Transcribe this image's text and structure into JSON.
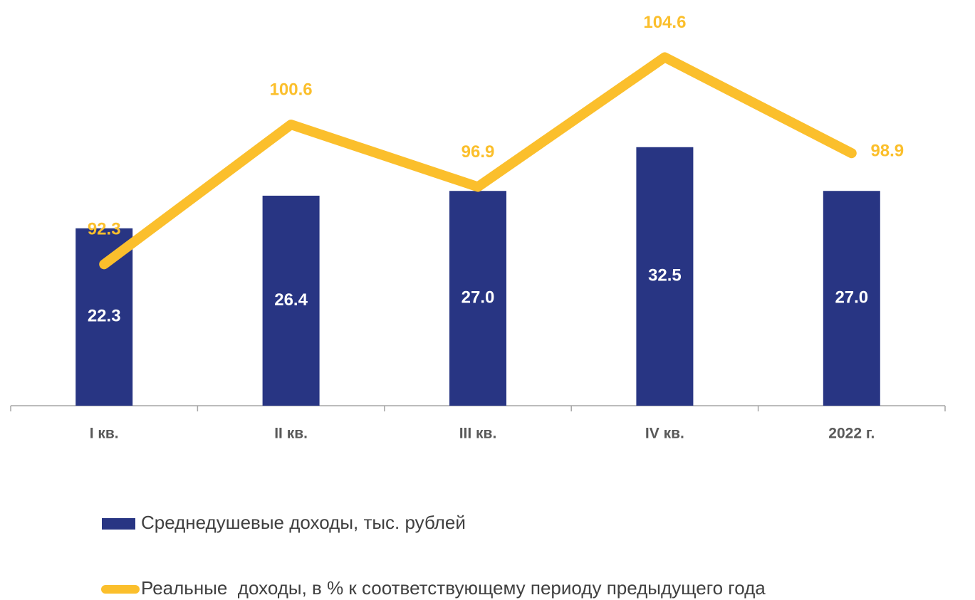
{
  "chart_data": {
    "type": "bar_line",
    "categories": [
      "I кв.",
      "II кв.",
      "III кв.",
      "IV кв.",
      "2022 г."
    ],
    "series": [
      {
        "name": "Среднедушевые доходы, тыс. рублей",
        "type": "bar",
        "color": "#283583",
        "values": [
          22.3,
          26.4,
          27.0,
          32.5,
          27.0
        ],
        "value_labels": [
          "22.3",
          "26.4",
          "27.0",
          "32.5",
          "27.0"
        ]
      },
      {
        "name": "Реальные  доходы, в % к соответствующему периоду предыдущего года",
        "type": "line",
        "axis": "y2",
        "color": "#fbbf2c",
        "values": [
          92.3,
          100.6,
          96.9,
          104.6,
          98.9
        ]
      }
    ],
    "ylim": [
      0,
      51
    ],
    "y2lim": [
      83.9,
      108
    ]
  }
}
